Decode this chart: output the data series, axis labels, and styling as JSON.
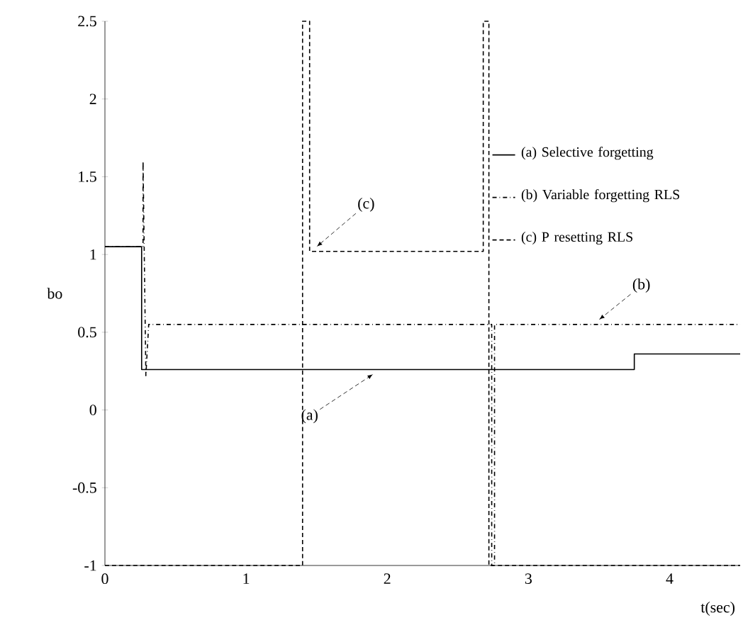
{
  "chart_data": {
    "type": "line",
    "xlabel": "t(sec)",
    "ylabel": "bo",
    "xlim": [
      0,
      4.5
    ],
    "ylim": [
      -1,
      2.5
    ],
    "xticks": [
      0,
      1,
      2,
      3,
      4
    ],
    "yticks": [
      -1,
      -0.5,
      0,
      0.5,
      1,
      1.5,
      2,
      2.5
    ],
    "grid": false,
    "legend": "right",
    "series": [
      {
        "name": "(a) Selective forgetting",
        "color": "#000000",
        "line_style": "solid",
        "x": [
          0,
          0.26,
          0.26,
          3.75,
          3.75,
          4.5
        ],
        "values": [
          1.05,
          1.05,
          0.26,
          0.26,
          0.36,
          0.36
        ]
      },
      {
        "name": "(b) Variable forgetting RLS",
        "color": "#000000",
        "line_style": "dashed",
        "x": [
          0,
          0.27,
          0.27,
          0.29,
          0.31,
          2.74,
          2.74,
          2.76,
          2.76,
          4.5
        ],
        "values": [
          1.05,
          1.05,
          1.6,
          0.22,
          0.55,
          0.55,
          -1,
          -1,
          0.55,
          0.55
        ]
      },
      {
        "name": "(c) P resetting RLS",
        "color": "#000000",
        "line_style": "dotted",
        "x": [
          0,
          1.4,
          1.4,
          1.45,
          1.45,
          2.68,
          2.68,
          2.72,
          2.72,
          4.5
        ],
        "values": [
          -1,
          -1,
          2.5,
          2.5,
          1.02,
          1.02,
          2.5,
          2.5,
          -1,
          -1
        ]
      }
    ],
    "annotations": [
      {
        "text": "(a)",
        "x": 1.9,
        "y": 0.26
      },
      {
        "text": "(b)",
        "x": 3.5,
        "y": 0.55
      },
      {
        "text": "(c)",
        "x": 1.5,
        "y": 1.02
      }
    ]
  }
}
